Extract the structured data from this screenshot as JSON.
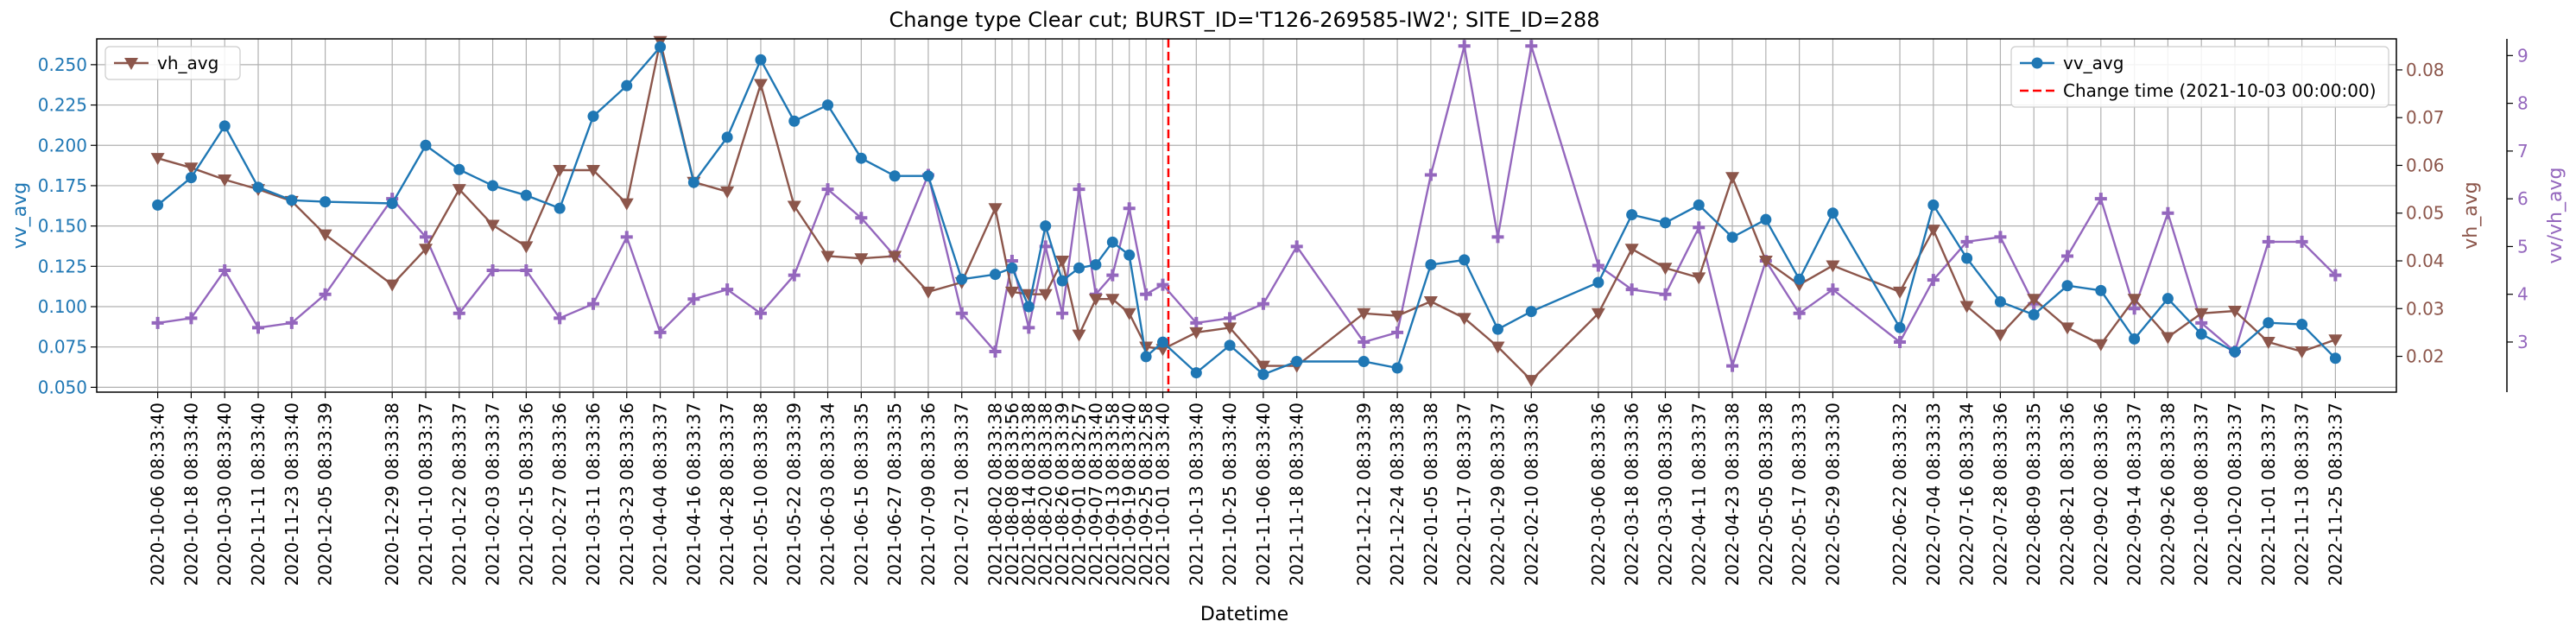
{
  "chart_data": {
    "type": "line",
    "title": "Change type Clear cut; BURST_ID='T126-269585-IW2'; SITE_ID=288",
    "xlabel": "Datetime",
    "x_ticks": [
      "2020-10-06 08:33:40",
      "2020-10-18 08:33:40",
      "2020-10-30 08:33:40",
      "2020-11-11 08:33:40",
      "2020-11-23 08:33:40",
      "2020-12-05 08:33:39",
      "2020-12-29 08:33:38",
      "2021-01-10 08:33:37",
      "2021-01-22 08:33:37",
      "2021-02-03 08:33:37",
      "2021-02-15 08:33:36",
      "2021-02-27 08:33:36",
      "2021-03-11 08:33:36",
      "2021-03-23 08:33:36",
      "2021-04-04 08:33:37",
      "2021-04-16 08:33:37",
      "2021-04-28 08:33:37",
      "2021-05-10 08:33:38",
      "2021-05-22 08:33:39",
      "2021-06-03 08:33:34",
      "2021-06-15 08:33:35",
      "2021-06-27 08:33:35",
      "2021-07-09 08:33:36",
      "2021-07-21 08:33:37",
      "2021-08-02 08:33:38",
      "2021-08-08 08:33:56",
      "2021-08-14 08:33:38",
      "2021-08-20 08:33:38",
      "2021-08-26 08:33:39",
      "2021-09-01 08:32:57",
      "2021-09-07 08:33:40",
      "2021-09-13 08:33:58",
      "2021-09-19 08:33:40",
      "2021-09-25 08:32:58",
      "2021-10-01 08:33:40",
      "2021-10-13 08:33:40",
      "2021-10-25 08:33:40",
      "2021-11-06 08:33:40",
      "2021-11-18 08:33:40",
      "2021-12-12 08:33:39",
      "2021-12-24 08:33:38",
      "2022-01-05 08:33:38",
      "2022-01-17 08:33:37",
      "2022-01-29 08:33:37",
      "2022-02-10 08:33:36",
      "2022-03-06 08:33:36",
      "2022-03-18 08:33:36",
      "2022-03-30 08:33:36",
      "2022-04-11 08:33:37",
      "2022-04-23 08:33:38",
      "2022-05-05 08:33:38",
      "2022-05-17 08:33:33",
      "2022-05-29 08:33:30",
      "2022-06-22 08:33:32",
      "2022-07-04 08:33:33",
      "2022-07-16 08:33:34",
      "2022-07-28 08:33:36",
      "2022-08-09 08:33:35",
      "2022-08-21 08:33:36",
      "2022-09-02 08:33:36",
      "2022-09-14 08:33:37",
      "2022-09-26 08:33:38",
      "2022-10-08 08:33:37",
      "2022-10-20 08:33:37",
      "2022-11-01 08:33:37",
      "2022-11-13 08:33:37",
      "2022-11-25 08:33:37"
    ],
    "axes": {
      "left": {
        "label": "vv_avg",
        "ticks": [
          "0.050",
          "0.075",
          "0.100",
          "0.125",
          "0.150",
          "0.175",
          "0.200",
          "0.225",
          "0.250"
        ],
        "ylim": [
          0.047,
          0.266
        ],
        "color": "#1f77b4"
      },
      "right1": {
        "label": "vh_avg",
        "ticks": [
          "0.02",
          "0.03",
          "0.04",
          "0.05",
          "0.06",
          "0.07",
          "0.08"
        ],
        "ylim": [
          0.0125,
          0.0865
        ],
        "color": "#8c564b"
      },
      "right2": {
        "label": "vv/vh_avg",
        "ticks": [
          "3",
          "4",
          "5",
          "6",
          "7",
          "8",
          "9"
        ],
        "ylim": [
          1.95,
          9.35
        ],
        "color": "#9467bd"
      }
    },
    "series": [
      {
        "name": "vv_avg",
        "axis": "left",
        "color": "#1f77b4",
        "marker": "circle",
        "x": [
          "2020-10-06",
          "2020-10-18",
          "2020-10-30",
          "2020-11-11",
          "2020-11-23",
          "2020-12-05",
          "2020-12-29",
          "2021-01-10",
          "2021-01-22",
          "2021-02-03",
          "2021-02-15",
          "2021-02-27",
          "2021-03-11",
          "2021-03-23",
          "2021-04-04",
          "2021-04-16",
          "2021-04-28",
          "2021-05-10",
          "2021-05-22",
          "2021-06-03",
          "2021-06-15",
          "2021-06-27",
          "2021-07-09",
          "2021-07-21",
          "2021-08-02",
          "2021-08-08",
          "2021-08-14",
          "2021-08-20",
          "2021-08-26",
          "2021-09-01",
          "2021-09-07",
          "2021-09-13",
          "2021-09-19",
          "2021-09-25",
          "2021-10-01",
          "2021-10-13",
          "2021-10-25",
          "2021-11-06",
          "2021-11-18",
          "2021-12-12",
          "2021-12-24",
          "2022-01-05",
          "2022-01-17",
          "2022-01-29",
          "2022-02-10",
          "2022-03-06",
          "2022-03-18",
          "2022-03-30",
          "2022-04-11",
          "2022-04-23",
          "2022-05-05",
          "2022-05-17",
          "2022-05-29",
          "2022-06-22",
          "2022-07-04",
          "2022-07-16",
          "2022-07-28",
          "2022-08-09",
          "2022-08-21",
          "2022-09-02",
          "2022-09-14",
          "2022-09-26",
          "2022-10-08",
          "2022-10-20",
          "2022-11-01",
          "2022-11-13",
          "2022-11-25"
        ],
        "values": [
          0.163,
          0.18,
          0.212,
          0.174,
          0.166,
          0.165,
          0.164,
          0.2,
          0.185,
          0.175,
          0.169,
          0.161,
          0.218,
          0.237,
          0.261,
          0.177,
          0.205,
          0.253,
          0.215,
          0.225,
          0.192,
          0.181,
          0.181,
          0.117,
          0.12,
          0.124,
          0.1,
          0.15,
          0.116,
          0.124,
          0.126,
          0.14,
          0.132,
          0.069,
          0.078,
          0.059,
          0.076,
          0.058,
          0.066,
          0.066,
          0.062,
          0.126,
          0.129,
          0.086,
          0.097,
          0.115,
          0.157,
          0.152,
          0.163,
          0.143,
          0.154,
          0.117,
          0.158,
          0.087,
          0.163,
          0.13,
          0.103,
          0.095,
          0.113,
          0.11,
          0.08,
          0.105,
          0.083,
          0.072,
          0.09,
          0.089,
          0.068
        ]
      },
      {
        "name": "vh_avg",
        "axis": "right1",
        "color": "#8c564b",
        "marker": "triangle-down",
        "x": [
          "2020-10-06",
          "2020-10-18",
          "2020-10-30",
          "2020-11-11",
          "2020-11-23",
          "2020-12-05",
          "2020-12-29",
          "2021-01-10",
          "2021-01-22",
          "2021-02-03",
          "2021-02-15",
          "2021-02-27",
          "2021-03-11",
          "2021-03-23",
          "2021-04-04",
          "2021-04-16",
          "2021-04-28",
          "2021-05-10",
          "2021-05-22",
          "2021-06-03",
          "2021-06-15",
          "2021-06-27",
          "2021-07-09",
          "2021-07-21",
          "2021-08-02",
          "2021-08-08",
          "2021-08-14",
          "2021-08-20",
          "2021-08-26",
          "2021-09-01",
          "2021-09-07",
          "2021-09-13",
          "2021-09-19",
          "2021-09-25",
          "2021-10-01",
          "2021-10-13",
          "2021-10-25",
          "2021-11-06",
          "2021-11-18",
          "2021-12-12",
          "2021-12-24",
          "2022-01-05",
          "2022-01-17",
          "2022-01-29",
          "2022-02-10",
          "2022-03-06",
          "2022-03-18",
          "2022-03-30",
          "2022-04-11",
          "2022-04-23",
          "2022-05-05",
          "2022-05-17",
          "2022-05-29",
          "2022-06-22",
          "2022-07-04",
          "2022-07-16",
          "2022-07-28",
          "2022-08-09",
          "2022-08-21",
          "2022-09-02",
          "2022-09-14",
          "2022-09-26",
          "2022-10-08",
          "2022-10-20",
          "2022-11-01",
          "2022-11-13",
          "2022-11-25"
        ],
        "values": [
          0.0615,
          0.0595,
          0.057,
          0.055,
          0.0525,
          0.0455,
          0.035,
          0.0425,
          0.055,
          0.0475,
          0.043,
          0.059,
          0.059,
          0.052,
          0.086,
          0.0565,
          0.0545,
          0.077,
          0.0515,
          0.041,
          0.0405,
          0.041,
          0.0335,
          0.0355,
          0.051,
          0.0335,
          0.033,
          0.033,
          0.04,
          0.0245,
          0.032,
          0.032,
          0.029,
          0.022,
          0.0215,
          0.025,
          0.026,
          0.018,
          0.018,
          0.029,
          0.0285,
          0.0315,
          0.028,
          0.022,
          0.015,
          0.029,
          0.0425,
          0.0385,
          0.0365,
          0.0575,
          0.04,
          0.035,
          0.039,
          0.0335,
          0.0465,
          0.0305,
          0.0245,
          0.032,
          0.026,
          0.0225,
          0.032,
          0.024,
          0.029,
          0.0295,
          0.023,
          0.021,
          0.0235
        ]
      },
      {
        "name": "vv/vh_avg",
        "axis": "right2",
        "color": "#9467bd",
        "marker": "plus",
        "x": [
          "2020-10-06",
          "2020-10-18",
          "2020-10-30",
          "2020-11-11",
          "2020-11-23",
          "2020-12-05",
          "2020-12-29",
          "2021-01-10",
          "2021-01-22",
          "2021-02-03",
          "2021-02-15",
          "2021-02-27",
          "2021-03-11",
          "2021-03-23",
          "2021-04-04",
          "2021-04-16",
          "2021-04-28",
          "2021-05-10",
          "2021-05-22",
          "2021-06-03",
          "2021-06-15",
          "2021-06-27",
          "2021-07-09",
          "2021-07-21",
          "2021-08-02",
          "2021-08-08",
          "2021-08-14",
          "2021-08-20",
          "2021-08-26",
          "2021-09-01",
          "2021-09-07",
          "2021-09-13",
          "2021-09-19",
          "2021-09-25",
          "2021-10-01",
          "2021-10-13",
          "2021-10-25",
          "2021-11-06",
          "2021-11-18",
          "2021-12-12",
          "2021-12-24",
          "2022-01-05",
          "2022-01-17",
          "2022-01-29",
          "2022-02-10",
          "2022-03-06",
          "2022-03-18",
          "2022-03-30",
          "2022-04-11",
          "2022-04-23",
          "2022-05-05",
          "2022-05-17",
          "2022-05-29",
          "2022-06-22",
          "2022-07-04",
          "2022-07-16",
          "2022-07-28",
          "2022-08-09",
          "2022-08-21",
          "2022-09-02",
          "2022-09-14",
          "2022-09-26",
          "2022-10-08",
          "2022-10-20",
          "2022-11-01",
          "2022-11-13",
          "2022-11-25"
        ],
        "values": [
          3.4,
          3.5,
          4.5,
          3.3,
          3.4,
          4.0,
          6.0,
          5.2,
          3.6,
          4.5,
          4.5,
          3.5,
          3.8,
          5.2,
          3.2,
          3.9,
          4.1,
          3.6,
          4.4,
          6.2,
          5.6,
          4.8,
          6.5,
          3.6,
          2.8,
          4.7,
          3.3,
          5.0,
          3.6,
          6.2,
          4.0,
          4.4,
          5.8,
          4.0,
          4.2,
          3.4,
          3.5,
          3.8,
          5.0,
          3.0,
          3.2,
          6.5,
          9.2,
          5.2,
          9.2,
          4.6,
          4.1,
          4.0,
          5.4,
          2.5,
          4.7,
          3.6,
          4.1,
          3.0,
          4.3,
          5.1,
          5.2,
          3.8,
          4.8,
          6.0,
          3.7,
          5.7,
          3.4,
          2.8,
          5.1,
          5.1,
          4.4
        ]
      }
    ],
    "change_line": {
      "x": "2021-10-03",
      "label": "Change time (2021-10-03 00:00:00)",
      "color": "#ff0000",
      "style": "dashed"
    },
    "legends": {
      "top_left": [
        "vh_avg"
      ],
      "top_right": [
        "vv_avg",
        "Change time (2021-10-03 00:00:00)"
      ]
    },
    "grid": true
  }
}
